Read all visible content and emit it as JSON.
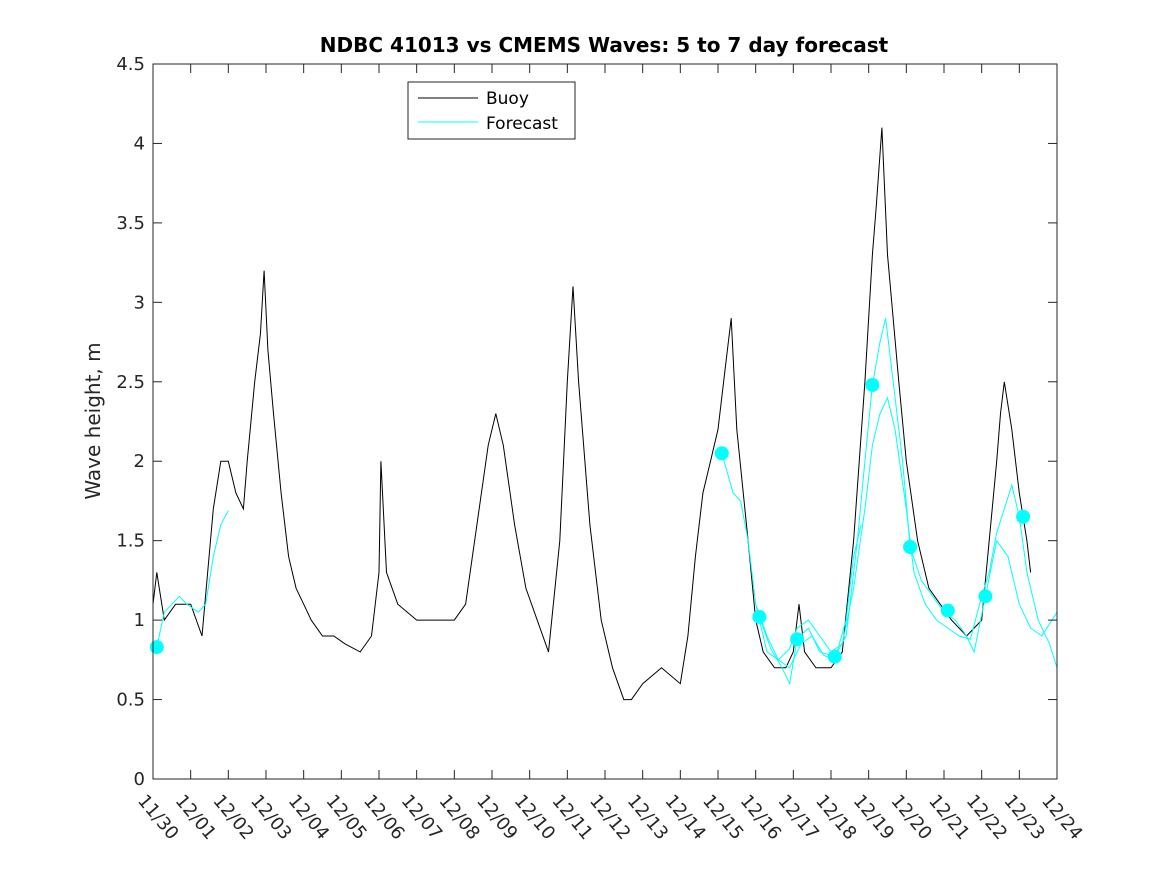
{
  "chart_data": {
    "type": "line",
    "title": "NDBC 41013 vs CMEMS Waves: 5 to 7 day forecast",
    "xlabel": "",
    "ylabel": "Wave height, m",
    "xlim": [
      0,
      24
    ],
    "ylim": [
      0,
      4.5
    ],
    "yticks": [
      "0",
      "0.5",
      "1",
      "1.5",
      "2",
      "2.5",
      "3",
      "3.5",
      "4",
      "4.5"
    ],
    "xtick_labels": [
      "11/30",
      "12/01",
      "12/02",
      "12/03",
      "12/04",
      "12/05",
      "12/06",
      "12/07",
      "12/08",
      "12/09",
      "12/10",
      "12/11",
      "12/12",
      "12/13",
      "12/14",
      "12/15",
      "12/16",
      "12/17",
      "12/18",
      "12/19",
      "12/20",
      "12/21",
      "12/22",
      "12/23",
      "12/24"
    ],
    "legend": {
      "location": "top-left-center",
      "entries": [
        "Buoy",
        "Forecast"
      ]
    },
    "colors": {
      "buoy": "#000000",
      "forecast": "#00ffff",
      "axis": "#262626"
    },
    "series": [
      {
        "name": "Buoy",
        "color": "#000000",
        "points": [
          [
            0,
            1.1
          ],
          [
            0.1,
            1.3
          ],
          [
            0.3,
            1.0
          ],
          [
            0.6,
            1.1
          ],
          [
            1.0,
            1.1
          ],
          [
            1.3,
            0.9
          ],
          [
            1.6,
            1.7
          ],
          [
            1.8,
            2.0
          ],
          [
            2.0,
            2.0
          ],
          [
            2.2,
            1.8
          ],
          [
            2.4,
            1.7
          ],
          [
            2.5,
            2.0
          ],
          [
            2.7,
            2.5
          ],
          [
            2.85,
            2.8
          ],
          [
            2.95,
            3.2
          ],
          [
            3.05,
            2.7
          ],
          [
            3.2,
            2.3
          ],
          [
            3.4,
            1.8
          ],
          [
            3.6,
            1.4
          ],
          [
            3.8,
            1.2
          ],
          [
            4.0,
            1.1
          ],
          [
            4.2,
            1.0
          ],
          [
            4.5,
            0.9
          ],
          [
            4.8,
            0.9
          ],
          [
            5.1,
            0.85
          ],
          [
            5.5,
            0.8
          ],
          [
            5.8,
            0.9
          ],
          [
            6.0,
            1.3
          ],
          [
            6.05,
            2.0
          ],
          [
            6.2,
            1.3
          ],
          [
            6.5,
            1.1
          ],
          [
            7.0,
            1.0
          ],
          [
            7.5,
            1.0
          ],
          [
            8.0,
            1.0
          ],
          [
            8.3,
            1.1
          ],
          [
            8.6,
            1.6
          ],
          [
            8.9,
            2.1
          ],
          [
            9.1,
            2.3
          ],
          [
            9.3,
            2.1
          ],
          [
            9.6,
            1.6
          ],
          [
            9.9,
            1.2
          ],
          [
            10.2,
            1.0
          ],
          [
            10.5,
            0.8
          ],
          [
            10.8,
            1.5
          ],
          [
            11.0,
            2.5
          ],
          [
            11.1,
            2.9
          ],
          [
            11.15,
            3.1
          ],
          [
            11.3,
            2.5
          ],
          [
            11.6,
            1.6
          ],
          [
            11.9,
            1.0
          ],
          [
            12.2,
            0.7
          ],
          [
            12.5,
            0.5
          ],
          [
            12.7,
            0.5
          ],
          [
            13.0,
            0.6
          ],
          [
            13.5,
            0.7
          ],
          [
            14.0,
            0.6
          ],
          [
            14.2,
            0.9
          ],
          [
            14.4,
            1.4
          ],
          [
            14.6,
            1.8
          ],
          [
            14.8,
            2.0
          ],
          [
            15.0,
            2.2
          ],
          [
            15.2,
            2.6
          ],
          [
            15.35,
            2.9
          ],
          [
            15.5,
            2.2
          ],
          [
            15.8,
            1.5
          ],
          [
            16.0,
            1.0
          ],
          [
            16.2,
            0.8
          ],
          [
            16.5,
            0.7
          ],
          [
            16.8,
            0.7
          ],
          [
            17.0,
            0.8
          ],
          [
            17.15,
            1.1
          ],
          [
            17.3,
            0.8
          ],
          [
            17.6,
            0.7
          ],
          [
            18.0,
            0.7
          ],
          [
            18.3,
            0.8
          ],
          [
            18.6,
            1.5
          ],
          [
            18.9,
            2.5
          ],
          [
            19.1,
            3.3
          ],
          [
            19.2,
            3.6
          ],
          [
            19.35,
            4.1
          ],
          [
            19.5,
            3.3
          ],
          [
            19.8,
            2.5
          ],
          [
            20.0,
            2.0
          ],
          [
            20.3,
            1.5
          ],
          [
            20.6,
            1.2
          ],
          [
            20.9,
            1.1
          ],
          [
            21.2,
            1.0
          ],
          [
            21.6,
            0.9
          ],
          [
            22.0,
            1.0
          ],
          [
            22.2,
            1.5
          ],
          [
            22.4,
            2.0
          ],
          [
            22.5,
            2.3
          ],
          [
            22.6,
            2.5
          ],
          [
            22.8,
            2.2
          ],
          [
            23.0,
            1.8
          ],
          [
            23.2,
            1.5
          ],
          [
            23.3,
            1.3
          ]
        ]
      },
      {
        "name": "Forecast",
        "color": "#00ffff",
        "points": [
          [
            0.1,
            0.83
          ],
          [
            0.3,
            1.05
          ],
          [
            0.5,
            1.1
          ],
          [
            0.7,
            1.15
          ],
          [
            0.9,
            1.1
          ],
          [
            1.2,
            1.05
          ],
          [
            1.4,
            1.1
          ],
          [
            1.6,
            1.4
          ],
          [
            1.8,
            1.6
          ],
          [
            2.0,
            1.69
          ]
        ]
      },
      {
        "name": "Forecast",
        "color": "#00ffff",
        "points": [
          [
            15.1,
            2.05
          ],
          [
            15.4,
            1.8
          ],
          [
            15.6,
            1.75
          ],
          [
            15.8,
            1.5
          ],
          [
            16.0,
            1.1
          ],
          [
            16.3,
            0.8
          ],
          [
            16.6,
            0.75
          ],
          [
            16.9,
            0.82
          ],
          [
            17.1,
            0.95
          ],
          [
            17.4,
            1.0
          ],
          [
            17.7,
            0.9
          ],
          [
            18.0,
            0.8
          ],
          [
            18.3,
            0.85
          ],
          [
            18.6,
            1.2
          ],
          [
            18.9,
            1.7
          ],
          [
            19.1,
            2.1
          ],
          [
            19.3,
            2.3
          ],
          [
            19.5,
            2.4
          ],
          [
            19.7,
            2.2
          ],
          [
            20.0,
            1.7
          ],
          [
            20.2,
            1.3
          ],
          [
            20.5,
            1.1
          ],
          [
            20.8,
            1.0
          ],
          [
            21.1,
            0.95
          ],
          [
            21.4,
            0.9
          ],
          [
            21.7,
            0.88
          ],
          [
            22.0,
            1.15
          ],
          [
            22.2,
            1.3
          ],
          [
            22.4,
            1.55
          ],
          [
            22.6,
            1.7
          ],
          [
            22.8,
            1.85
          ],
          [
            23.0,
            1.65
          ],
          [
            23.2,
            1.3
          ],
          [
            23.5,
            1.0
          ],
          [
            23.8,
            0.85
          ],
          [
            24.0,
            0.7
          ]
        ]
      },
      {
        "name": "Forecast",
        "color": "#00ffff",
        "points": [
          [
            16.1,
            1.02
          ],
          [
            16.4,
            0.82
          ],
          [
            16.7,
            0.7
          ],
          [
            16.9,
            0.6
          ],
          [
            17.1,
            0.88
          ],
          [
            17.4,
            0.95
          ],
          [
            17.7,
            0.8
          ],
          [
            18.1,
            0.77
          ],
          [
            18.4,
            0.9
          ],
          [
            18.7,
            1.5
          ],
          [
            18.9,
            2.0
          ],
          [
            19.1,
            2.48
          ],
          [
            19.3,
            2.75
          ],
          [
            19.45,
            2.9
          ],
          [
            19.6,
            2.6
          ],
          [
            19.9,
            2.0
          ],
          [
            20.1,
            1.46
          ],
          [
            20.4,
            1.25
          ],
          [
            20.7,
            1.15
          ],
          [
            21.0,
            1.05
          ],
          [
            21.3,
            1.0
          ],
          [
            21.6,
            0.9
          ],
          [
            21.8,
            0.8
          ],
          [
            22.1,
            1.15
          ],
          [
            22.4,
            1.5
          ],
          [
            22.7,
            1.4
          ],
          [
            23.0,
            1.1
          ],
          [
            23.3,
            0.95
          ],
          [
            23.6,
            0.9
          ],
          [
            24.0,
            1.05
          ]
        ]
      },
      {
        "name": "Forecast",
        "color": "#00ffff",
        "points": [
          [
            16.0,
            1.1
          ],
          [
            16.3,
            0.9
          ],
          [
            16.6,
            0.75
          ],
          [
            16.9,
            0.7
          ],
          [
            17.2,
            0.85
          ],
          [
            17.5,
            0.9
          ],
          [
            17.8,
            0.78
          ],
          [
            18.1,
            0.75
          ],
          [
            18.4,
            1.0
          ],
          [
            18.6,
            1.4
          ],
          [
            18.8,
            1.6
          ]
        ]
      }
    ],
    "markers": {
      "name": "Forecast start",
      "color": "#00ffff",
      "points": [
        [
          0.1,
          0.83
        ],
        [
          15.1,
          2.05
        ],
        [
          16.1,
          1.02
        ],
        [
          17.1,
          0.88
        ],
        [
          18.1,
          0.77
        ],
        [
          19.1,
          2.48
        ],
        [
          20.1,
          1.46
        ],
        [
          21.1,
          1.06
        ],
        [
          22.1,
          1.15
        ],
        [
          23.1,
          1.65
        ]
      ]
    }
  }
}
